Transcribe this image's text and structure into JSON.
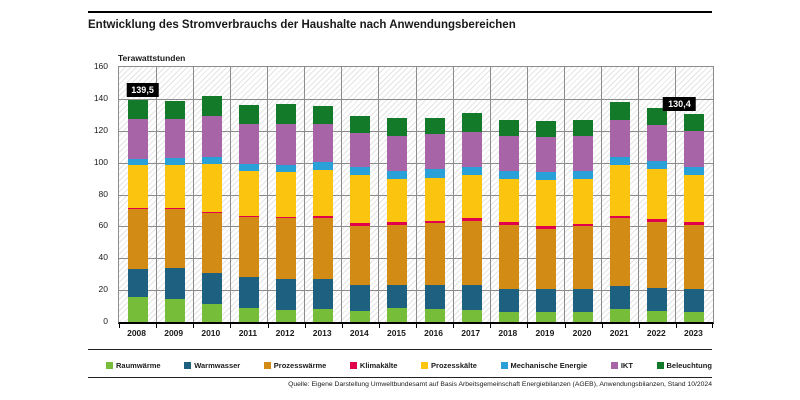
{
  "header": {
    "title": "Entwicklung des Stromverbrauchs der Haushalte nach Anwendungsbereichen"
  },
  "chart": {
    "y_axis_title": "Terawattstunden"
  },
  "footer": {
    "source": "Quelle: Eigene Darstellung Umweltbundesamt auf Basis Arbeitsgemeinschaft Energiebilanzen (AGEB), Anwendungsbilanzen, Stand 10/2024"
  },
  "chart_data": {
    "type": "bar",
    "stacked": true,
    "title": "Entwicklung des Stromverbrauchs der Haushalte nach Anwendungsbereichen",
    "xlabel": "",
    "ylabel": "Terawattstunden",
    "ylim": [
      0,
      160
    ],
    "ytick_step": 20,
    "grid": true,
    "legend_position": "bottom",
    "categories": [
      "2008",
      "2009",
      "2010",
      "2011",
      "2012",
      "2013",
      "2014",
      "2015",
      "2016",
      "2017",
      "2018",
      "2019",
      "2020",
      "2021",
      "2022",
      "2023"
    ],
    "series": [
      {
        "name": "Raumwärme",
        "color": "#76bd39",
        "values": [
          16,
          14.5,
          11.5,
          8.5,
          7.5,
          8,
          7,
          9,
          8,
          7.5,
          6.5,
          6,
          6.5,
          8,
          7,
          6.5
        ]
      },
      {
        "name": "Warmwasser",
        "color": "#1e607f",
        "values": [
          17,
          19.5,
          19,
          19.5,
          19.5,
          19,
          16,
          14.5,
          15,
          16,
          14.5,
          14.5,
          14.5,
          14.5,
          14.5,
          14.5
        ]
      },
      {
        "name": "Prozesswärme",
        "color": "#d28c15",
        "values": [
          38,
          37.5,
          38,
          38,
          38.5,
          38,
          37.5,
          37.5,
          39,
          40,
          40,
          38,
          39,
          42.5,
          41.5,
          40
        ]
      },
      {
        "name": "Klimakälte",
        "color": "#e0004b",
        "values": [
          0.3,
          0.3,
          0.3,
          0.3,
          0.3,
          1.5,
          1.5,
          1.5,
          1.5,
          1.5,
          1.5,
          1.5,
          1.5,
          1.5,
          1.5,
          1.5
        ]
      },
      {
        "name": "Prozesskälte",
        "color": "#fbc40f",
        "values": [
          27,
          27,
          30.5,
          28.5,
          28.5,
          29,
          30,
          27.5,
          27,
          27,
          27.5,
          29,
          28,
          32,
          31.5,
          29.5
        ]
      },
      {
        "name": "Mechanische Energie",
        "color": "#29a0d8",
        "values": [
          4.2,
          4.4,
          4.2,
          4.4,
          4.4,
          4.6,
          5,
          5,
          5.3,
          5,
          5,
          5,
          5,
          5,
          5,
          5
        ]
      },
      {
        "name": "IKT",
        "color": "#a765a7",
        "values": [
          25,
          24,
          25.5,
          25,
          25.5,
          24,
          21.5,
          22,
          22,
          22.5,
          22,
          22,
          22,
          23,
          22.5,
          23
        ]
      },
      {
        "name": "Beleuchtung",
        "color": "#127a28",
        "values": [
          12,
          11.7,
          13,
          12,
          12.4,
          11.3,
          11,
          11,
          10.5,
          11.5,
          10,
          10,
          10,
          11.5,
          11,
          10.4
        ]
      }
    ],
    "annotations": [
      {
        "category": "2008",
        "label": "139,5"
      },
      {
        "category": "2023",
        "label": "130,4"
      }
    ]
  }
}
